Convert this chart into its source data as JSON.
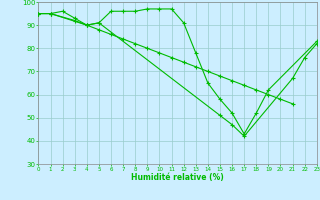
{
  "title": "",
  "xlabel": "Humidité relative (%)",
  "ylabel": "",
  "bg_color": "#cceeff",
  "grid_color": "#99cccc",
  "line_color": "#00bb00",
  "x_min": 0,
  "x_max": 23,
  "y_min": 30,
  "y_max": 100,
  "x_ticks": [
    0,
    1,
    2,
    3,
    4,
    5,
    6,
    7,
    8,
    9,
    10,
    11,
    12,
    13,
    14,
    15,
    16,
    17,
    18,
    19,
    20,
    21,
    22,
    23
  ],
  "y_ticks": [
    30,
    40,
    50,
    60,
    70,
    80,
    90,
    100
  ],
  "series": [
    {
      "x": [
        0,
        1,
        2,
        3,
        4,
        5,
        6,
        7,
        8,
        9,
        10,
        11,
        12,
        13,
        14,
        15,
        16,
        17,
        18,
        19,
        23
      ],
      "y": [
        95,
        95,
        96,
        93,
        90,
        91,
        96,
        96,
        96,
        97,
        97,
        97,
        91,
        78,
        65,
        58,
        52,
        43,
        52,
        62,
        83
      ]
    },
    {
      "x": [
        0,
        1,
        3,
        4,
        5,
        15,
        16,
        17,
        21,
        22,
        23
      ],
      "y": [
        95,
        95,
        92,
        90,
        91,
        51,
        47,
        42,
        67,
        76,
        82
      ]
    },
    {
      "x": [
        0,
        1,
        4,
        5,
        6,
        7,
        8,
        9,
        10,
        11,
        12,
        13,
        14,
        15,
        16,
        17,
        18,
        19,
        20,
        21
      ],
      "y": [
        95,
        95,
        90,
        88,
        86,
        84,
        82,
        80,
        78,
        76,
        74,
        72,
        70,
        68,
        66,
        64,
        62,
        60,
        58,
        56
      ]
    }
  ]
}
